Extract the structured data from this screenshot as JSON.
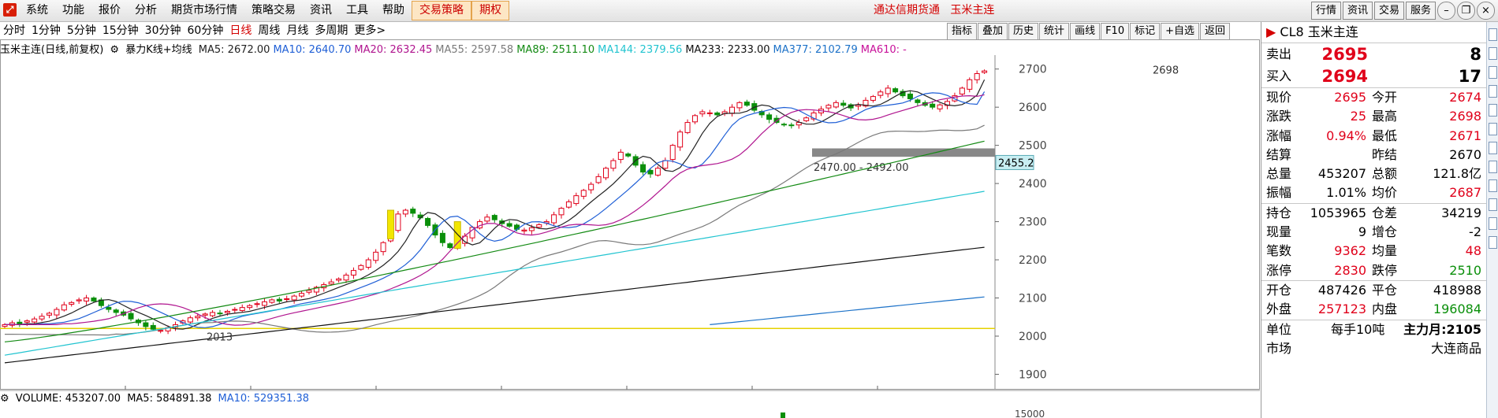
{
  "menubar": {
    "items": [
      "系统",
      "功能",
      "报价",
      "分析",
      "期货市场行情",
      "策略交易",
      "资讯",
      "工具",
      "帮助",
      "交易策略",
      "期权"
    ],
    "title_left": "通达信期货通",
    "title_right": "玉米主连",
    "right_buttons": [
      "行情",
      "资讯",
      "交易",
      "服务"
    ]
  },
  "periods": [
    "分时",
    "1分钟",
    "5分钟",
    "15分钟",
    "30分钟",
    "60分钟",
    "日线",
    "周线",
    "月线",
    "多周期",
    "更多>"
  ],
  "active_period": "日线",
  "tools": [
    "指标",
    "叠加",
    "历史",
    "统计",
    "画线",
    "F10",
    "标记",
    "+自选",
    "返回"
  ],
  "chart_header": {
    "name": "玉米主连(日线,前复权)",
    "indicator": "暴力K线+均线",
    "ma": [
      {
        "label": "MA5: 2672.00",
        "color": "#222222"
      },
      {
        "label": "MA10: 2640.70",
        "color": "#1f5fd6"
      },
      {
        "label": "MA20: 2632.45",
        "color": "#b0158f"
      },
      {
        "label": "MA55: 2597.58",
        "color": "#7a7a7a"
      },
      {
        "label": "MA89: 2511.10",
        "color": "#138a13"
      },
      {
        "label": "MA144: 2379.56",
        "color": "#22c4d0"
      },
      {
        "label": "MA233: 2233.00",
        "color": "#111111"
      },
      {
        "label": "MA377: 2102.79",
        "color": "#1d72c8"
      },
      {
        "label": "MA610: -",
        "color": "#c8109a"
      }
    ]
  },
  "volume_header": {
    "label": "VOLUME: 453207.00",
    "ma5": "MA5: 584891.38",
    "ma10": "MA10: 529351.38"
  },
  "chart_annotations": {
    "high_label": "2698",
    "low_label": "2013",
    "zone_label": "2470.00 - 2492.00",
    "price_tag": "2455.2",
    "vol_axis_label": "15000"
  },
  "chart_data": {
    "type": "line",
    "ylim": [
      1870,
      2720
    ],
    "yticks": [
      1900,
      2000,
      2100,
      2200,
      2300,
      2400,
      2500,
      2600,
      2700
    ],
    "close_series": [
      2030,
      2035,
      2032,
      2040,
      2045,
      2052,
      2060,
      2070,
      2082,
      2088,
      2095,
      2100,
      2092,
      2080,
      2070,
      2062,
      2055,
      2045,
      2035,
      2025,
      2018,
      2015,
      2022,
      2030,
      2040,
      2048,
      2052,
      2058,
      2062,
      2060,
      2065,
      2070,
      2075,
      2080,
      2085,
      2090,
      2095,
      2092,
      2098,
      2105,
      2112,
      2120,
      2128,
      2135,
      2142,
      2150,
      2160,
      2172,
      2185,
      2200,
      2220,
      2245,
      2280,
      2320,
      2330,
      2322,
      2310,
      2290,
      2265,
      2245,
      2232,
      2240,
      2262,
      2285,
      2300,
      2312,
      2305,
      2295,
      2288,
      2280,
      2278,
      2284,
      2292,
      2300,
      2318,
      2335,
      2352,
      2368,
      2382,
      2398,
      2418,
      2440,
      2460,
      2482,
      2472,
      2448,
      2430,
      2425,
      2440,
      2460,
      2500,
      2535,
      2560,
      2578,
      2588,
      2585,
      2580,
      2588,
      2600,
      2612,
      2605,
      2592,
      2580,
      2568,
      2560,
      2555,
      2552,
      2560,
      2572,
      2585,
      2595,
      2605,
      2612,
      2605,
      2598,
      2606,
      2618,
      2628,
      2640,
      2650,
      2640,
      2630,
      2622,
      2612,
      2605,
      2600,
      2606,
      2615,
      2630,
      2650,
      2672,
      2688,
      2695
    ],
    "ma_series": [
      {
        "name": "MA5",
        "color": "#222222",
        "start": 2030,
        "end": 2672
      },
      {
        "name": "MA10",
        "color": "#1f5fd6",
        "start": 2028,
        "end": 2640.7
      },
      {
        "name": "MA20",
        "color": "#b0158f",
        "start": 2025,
        "end": 2632.45
      },
      {
        "name": "MA55",
        "color": "#7a7a7a",
        "start": 2015,
        "end": 2597.58
      },
      {
        "name": "MA89",
        "color": "#138a13",
        "start": 1985,
        "end": 2511.1
      },
      {
        "name": "MA144",
        "color": "#22c4d0",
        "start": 1950,
        "end": 2379.56
      },
      {
        "name": "MA233",
        "color": "#111111",
        "start": 1930,
        "end": 2233
      },
      {
        "name": "MA377",
        "color": "#1d72c8",
        "start": 2030,
        "end": 2102.79
      }
    ],
    "reference_line": 2020,
    "zone": [
      2470,
      2492
    ]
  },
  "quote": {
    "code": "CL8",
    "name": "玉米主连",
    "sell": {
      "label": "卖出",
      "price": "2695",
      "vol": "8"
    },
    "buy": {
      "label": "买入",
      "price": "2694",
      "vol": "17"
    },
    "rows1": [
      {
        "l": "现价",
        "v": "2695",
        "vc": "red",
        "l2": "今开",
        "v2": "2674",
        "v2c": "red"
      },
      {
        "l": "涨跌",
        "v": "25",
        "vc": "red",
        "l2": "最高",
        "v2": "2698",
        "v2c": "red"
      },
      {
        "l": "涨幅",
        "v": "0.94%",
        "vc": "red",
        "l2": "最低",
        "v2": "2671",
        "v2c": "red"
      },
      {
        "l": "结算",
        "v": "",
        "vc": "",
        "l2": "昨结",
        "v2": "2670",
        "v2c": ""
      },
      {
        "l": "总量",
        "v": "453207",
        "vc": "",
        "l2": "总额",
        "v2": "121.8亿",
        "v2c": ""
      },
      {
        "l": "振幅",
        "v": "1.01%",
        "vc": "",
        "l2": "均价",
        "v2": "2687",
        "v2c": "red"
      }
    ],
    "rows2": [
      {
        "l": "持仓",
        "v": "1053965",
        "vc": "",
        "l2": "仓差",
        "v2": "34219",
        "v2c": ""
      },
      {
        "l": "现量",
        "v": "9",
        "vc": "",
        "l2": "增仓",
        "v2": "-2",
        "v2c": ""
      },
      {
        "l": "笔数",
        "v": "9362",
        "vc": "red",
        "l2": "均量",
        "v2": "48",
        "v2c": "red"
      },
      {
        "l": "涨停",
        "v": "2830",
        "vc": "red",
        "l2": "跌停",
        "v2": "2510",
        "v2c": "green"
      }
    ],
    "rows3": [
      {
        "l": "开仓",
        "v": "487426",
        "vc": "",
        "l2": "平仓",
        "v2": "418988",
        "v2c": ""
      },
      {
        "l": "外盘",
        "v": "257123",
        "vc": "red",
        "l2": "内盘",
        "v2": "196084",
        "v2c": "green"
      }
    ],
    "unit_label": "单位",
    "unit_value": "每手10吨",
    "main_month": "主力月:2105",
    "market_label": "市场",
    "market_value": "大连商品"
  }
}
